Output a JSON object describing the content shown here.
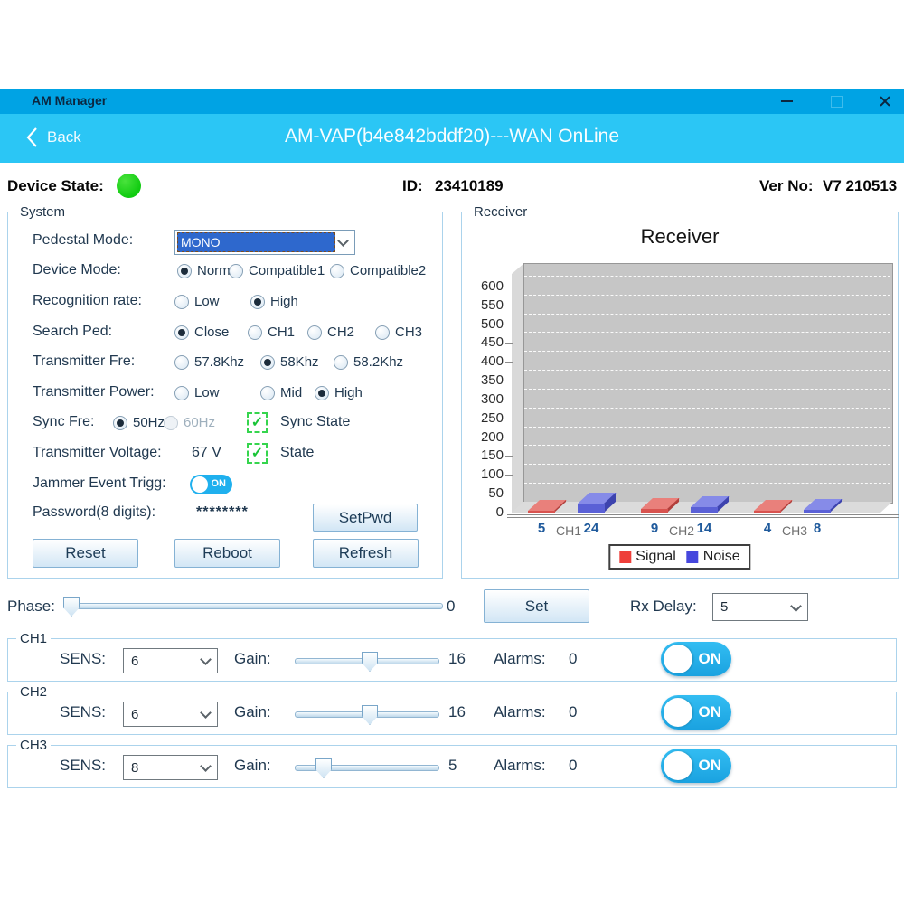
{
  "window": {
    "title": "AM Manager"
  },
  "nav": {
    "back_label": "Back",
    "title": "AM-VAP(b4e842bddf20)---WAN OnLine"
  },
  "status": {
    "device_state_label": "Device State:",
    "id_label": "ID:",
    "id_value": "23410189",
    "ver_label": "Ver No:",
    "ver_value": "V7 210513"
  },
  "system": {
    "title": "System",
    "pedestal": {
      "label": "Pedestal Mode:",
      "value": "MONO"
    },
    "device_mode": {
      "label": "Device Mode:",
      "options": [
        "Normal",
        "Compatible1",
        "Compatible2"
      ],
      "selected": "Normal"
    },
    "recognition": {
      "label": "Recognition rate:",
      "options": [
        "Low",
        "High"
      ],
      "selected": "High"
    },
    "search_ped": {
      "label": "Search Ped:",
      "options": [
        "Close",
        "CH1",
        "CH2",
        "CH3"
      ],
      "selected": "Close"
    },
    "transmitter_fre": {
      "label": "Transmitter Fre:",
      "options": [
        "57.8Khz",
        "58Khz",
        "58.2Khz"
      ],
      "selected": "58Khz"
    },
    "transmitter_power": {
      "label": "Transmitter Power:",
      "options": [
        "Low",
        "Mid",
        "High"
      ],
      "selected": "High"
    },
    "sync_fre": {
      "label": "Sync Fre:",
      "options": [
        "50Hz",
        "60Hz"
      ],
      "selected": "50Hz",
      "disabled_option": "60Hz",
      "state_label": "Sync State"
    },
    "transmitter_voltage": {
      "label": "Transmitter Voltage:",
      "value": "67 V",
      "state_label": "State"
    },
    "jammer": {
      "label": "Jammer Event Trigg:",
      "toggle_label": "ON"
    },
    "password": {
      "label": "Password(8 digits):",
      "value": "********",
      "button_label": "SetPwd"
    },
    "buttons": {
      "reset": "Reset",
      "reboot": "Reboot",
      "refresh": "Refresh"
    }
  },
  "receiver": {
    "group_label": "Receiver"
  },
  "chart_data": {
    "type": "bar",
    "title": "Receiver",
    "categories": [
      "CH1",
      "CH2",
      "CH3"
    ],
    "series": [
      {
        "name": "Signal",
        "values": [
          5,
          9,
          4
        ],
        "color": "#d8534f",
        "color_top": "#e9807b",
        "color_side": "#b23f3c",
        "color_legend": "#ee3f3a"
      },
      {
        "name": "Noise",
        "values": [
          24,
          14,
          8
        ],
        "color": "#5a60d6",
        "color_top": "#868be8",
        "color_side": "#3d43ae",
        "color_legend": "#4647dd"
      }
    ],
    "ylim": [
      0,
      620
    ],
    "yticks": [
      0,
      50,
      100,
      150,
      200,
      250,
      300,
      350,
      400,
      450,
      500,
      550,
      600
    ],
    "grid": "horizontal-dashed",
    "legend_position": "bottom"
  },
  "phase": {
    "label": "Phase:",
    "value": 0,
    "set_button": "Set",
    "rx_delay_label": "Rx Delay:",
    "rx_delay_value": "5"
  },
  "channels": [
    {
      "name": "CH1",
      "sens_label": "SENS:",
      "sens_value": "6",
      "gain_label": "Gain:",
      "gain_value": 16,
      "alarms_label": "Alarms:",
      "alarms_value": "0",
      "toggle_label": "ON"
    },
    {
      "name": "CH2",
      "sens_label": "SENS:",
      "sens_value": "6",
      "gain_label": "Gain:",
      "gain_value": 16,
      "alarms_label": "Alarms:",
      "alarms_value": "0",
      "toggle_label": "ON"
    },
    {
      "name": "CH3",
      "sens_label": "SENS:",
      "sens_value": "8",
      "gain_label": "Gain:",
      "gain_value": 5,
      "alarms_label": "Alarms:",
      "alarms_value": "0",
      "toggle_label": "ON"
    }
  ]
}
